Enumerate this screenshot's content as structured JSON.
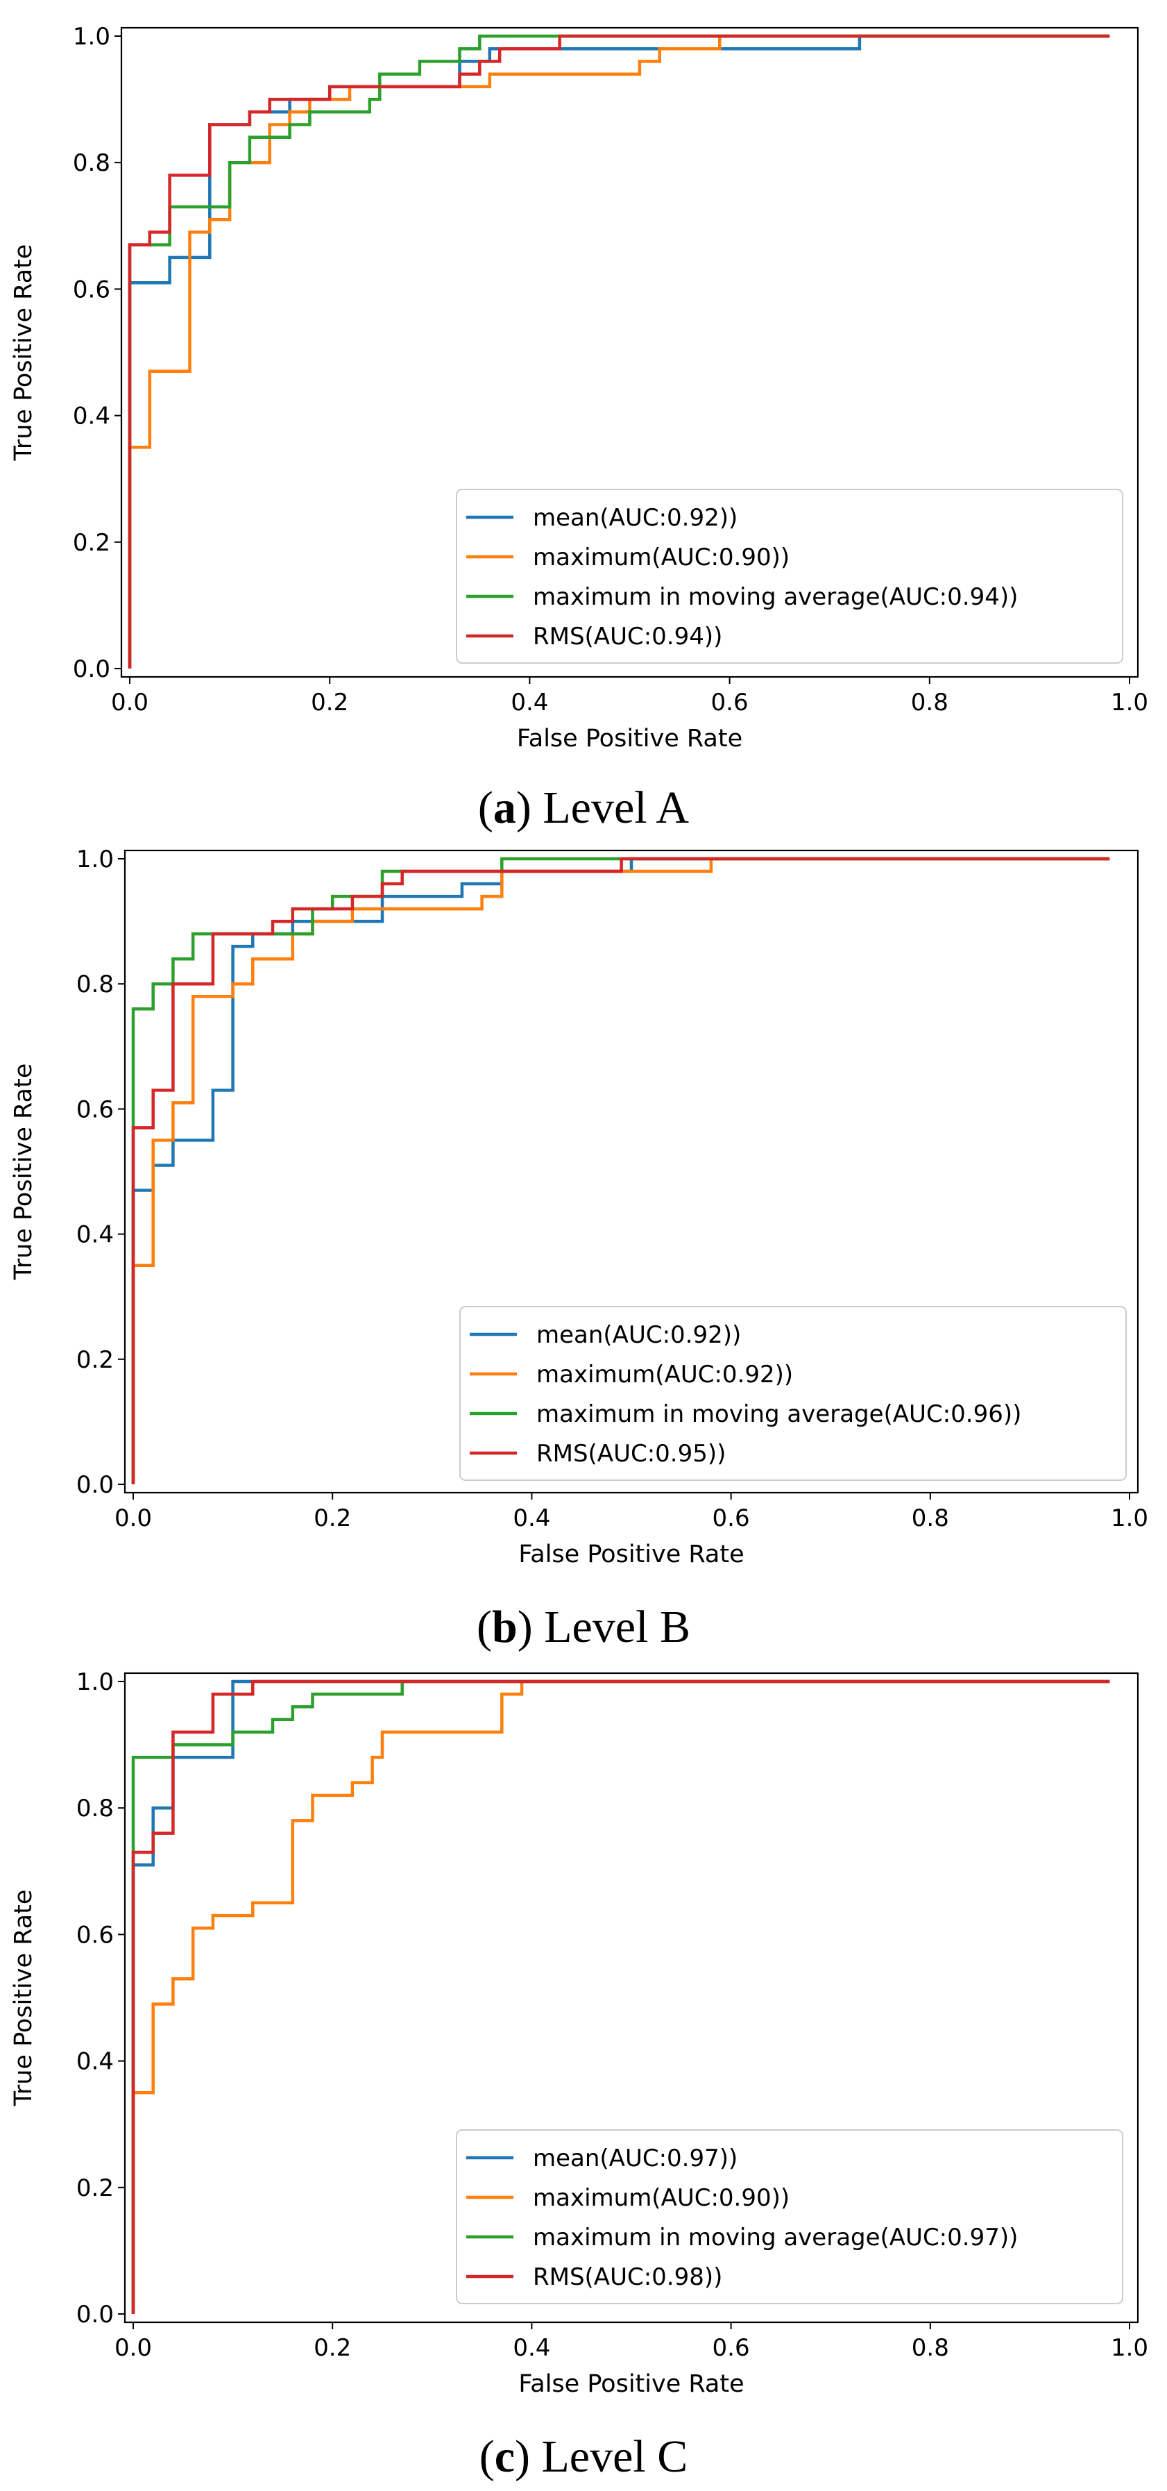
{
  "colors": {
    "mean": "#1f77b4",
    "maximum": "#ff7f0e",
    "moving_average": "#2ca02c",
    "rms": "#d62728"
  },
  "chart_data": [
    {
      "type": "line",
      "caption_letter": "a",
      "caption_text": "Level A",
      "xlabel": "False Positive Rate",
      "ylabel": "True Positive Rate",
      "xlim": [
        0,
        1
      ],
      "ylim": [
        0,
        1
      ],
      "x_ticks": [
        "0.0",
        "0.2",
        "0.4",
        "0.6",
        "0.8",
        "1.0"
      ],
      "y_ticks": [
        "0.0",
        "0.2",
        "0.4",
        "0.6",
        "0.8",
        "1.0"
      ],
      "grid": false,
      "legend_position": "lower-right",
      "series": [
        {
          "name": "mean(AUC:0.92))",
          "color": "#1f77b4",
          "points": [
            [
              0,
              0
            ],
            [
              0,
              0.61
            ],
            [
              0.04,
              0.61
            ],
            [
              0.04,
              0.65
            ],
            [
              0.08,
              0.65
            ],
            [
              0.08,
              0.86
            ],
            [
              0.12,
              0.86
            ],
            [
              0.12,
              0.88
            ],
            [
              0.16,
              0.88
            ],
            [
              0.16,
              0.9
            ],
            [
              0.2,
              0.9
            ],
            [
              0.2,
              0.92
            ],
            [
              0.33,
              0.92
            ],
            [
              0.33,
              0.96
            ],
            [
              0.36,
              0.96
            ],
            [
              0.36,
              0.98
            ],
            [
              0.73,
              0.98
            ],
            [
              0.73,
              1.0
            ],
            [
              0.98,
              1.0
            ]
          ]
        },
        {
          "name": "maximum(AUC:0.90))",
          "color": "#ff7f0e",
          "points": [
            [
              0,
              0
            ],
            [
              0,
              0.35
            ],
            [
              0.02,
              0.35
            ],
            [
              0.02,
              0.47
            ],
            [
              0.06,
              0.47
            ],
            [
              0.06,
              0.69
            ],
            [
              0.08,
              0.69
            ],
            [
              0.08,
              0.71
            ],
            [
              0.1,
              0.71
            ],
            [
              0.1,
              0.8
            ],
            [
              0.14,
              0.8
            ],
            [
              0.14,
              0.86
            ],
            [
              0.16,
              0.86
            ],
            [
              0.16,
              0.88
            ],
            [
              0.18,
              0.88
            ],
            [
              0.18,
              0.9
            ],
            [
              0.22,
              0.9
            ],
            [
              0.22,
              0.92
            ],
            [
              0.36,
              0.92
            ],
            [
              0.36,
              0.94
            ],
            [
              0.51,
              0.94
            ],
            [
              0.51,
              0.96
            ],
            [
              0.53,
              0.96
            ],
            [
              0.53,
              0.98
            ],
            [
              0.59,
              0.98
            ],
            [
              0.59,
              1.0
            ],
            [
              0.98,
              1.0
            ]
          ]
        },
        {
          "name": "maximum in moving average(AUC:0.94))",
          "color": "#2ca02c",
          "points": [
            [
              0,
              0
            ],
            [
              0,
              0.67
            ],
            [
              0.04,
              0.67
            ],
            [
              0.04,
              0.73
            ],
            [
              0.1,
              0.73
            ],
            [
              0.1,
              0.8
            ],
            [
              0.12,
              0.8
            ],
            [
              0.12,
              0.84
            ],
            [
              0.16,
              0.84
            ],
            [
              0.16,
              0.86
            ],
            [
              0.18,
              0.86
            ],
            [
              0.18,
              0.88
            ],
            [
              0.24,
              0.88
            ],
            [
              0.24,
              0.9
            ],
            [
              0.25,
              0.9
            ],
            [
              0.25,
              0.94
            ],
            [
              0.29,
              0.94
            ],
            [
              0.29,
              0.96
            ],
            [
              0.33,
              0.96
            ],
            [
              0.33,
              0.98
            ],
            [
              0.35,
              0.98
            ],
            [
              0.35,
              1.0
            ],
            [
              0.98,
              1.0
            ]
          ]
        },
        {
          "name": "RMS(AUC:0.94))",
          "color": "#d62728",
          "points": [
            [
              0,
              0
            ],
            [
              0,
              0.67
            ],
            [
              0.02,
              0.67
            ],
            [
              0.02,
              0.69
            ],
            [
              0.04,
              0.69
            ],
            [
              0.04,
              0.78
            ],
            [
              0.08,
              0.78
            ],
            [
              0.08,
              0.86
            ],
            [
              0.12,
              0.86
            ],
            [
              0.12,
              0.88
            ],
            [
              0.14,
              0.88
            ],
            [
              0.14,
              0.9
            ],
            [
              0.2,
              0.9
            ],
            [
              0.2,
              0.92
            ],
            [
              0.33,
              0.92
            ],
            [
              0.33,
              0.94
            ],
            [
              0.35,
              0.94
            ],
            [
              0.35,
              0.96
            ],
            [
              0.37,
              0.96
            ],
            [
              0.37,
              0.98
            ],
            [
              0.43,
              0.98
            ],
            [
              0.43,
              1.0
            ],
            [
              0.98,
              1.0
            ]
          ]
        }
      ]
    },
    {
      "type": "line",
      "caption_letter": "b",
      "caption_text": "Level B",
      "xlabel": "False Positive Rate",
      "ylabel": "True Positive Rate",
      "xlim": [
        0,
        1
      ],
      "ylim": [
        0,
        1
      ],
      "x_ticks": [
        "0.0",
        "0.2",
        "0.4",
        "0.6",
        "0.8",
        "1.0"
      ],
      "y_ticks": [
        "0.0",
        "0.2",
        "0.4",
        "0.6",
        "0.8",
        "1.0"
      ],
      "grid": false,
      "legend_position": "lower-right",
      "series": [
        {
          "name": "mean(AUC:0.92))",
          "color": "#1f77b4",
          "points": [
            [
              0,
              0
            ],
            [
              0,
              0.47
            ],
            [
              0.02,
              0.47
            ],
            [
              0.02,
              0.51
            ],
            [
              0.04,
              0.51
            ],
            [
              0.04,
              0.55
            ],
            [
              0.08,
              0.55
            ],
            [
              0.08,
              0.63
            ],
            [
              0.1,
              0.63
            ],
            [
              0.1,
              0.86
            ],
            [
              0.12,
              0.86
            ],
            [
              0.12,
              0.88
            ],
            [
              0.16,
              0.88
            ],
            [
              0.16,
              0.9
            ],
            [
              0.25,
              0.9
            ],
            [
              0.25,
              0.94
            ],
            [
              0.33,
              0.94
            ],
            [
              0.33,
              0.96
            ],
            [
              0.37,
              0.96
            ],
            [
              0.37,
              0.98
            ],
            [
              0.5,
              0.98
            ],
            [
              0.5,
              1.0
            ],
            [
              0.98,
              1.0
            ]
          ]
        },
        {
          "name": "maximum(AUC:0.92))",
          "color": "#ff7f0e",
          "points": [
            [
              0,
              0
            ],
            [
              0,
              0.35
            ],
            [
              0.02,
              0.35
            ],
            [
              0.02,
              0.55
            ],
            [
              0.04,
              0.55
            ],
            [
              0.04,
              0.61
            ],
            [
              0.06,
              0.61
            ],
            [
              0.06,
              0.78
            ],
            [
              0.1,
              0.78
            ],
            [
              0.1,
              0.8
            ],
            [
              0.12,
              0.8
            ],
            [
              0.12,
              0.84
            ],
            [
              0.16,
              0.84
            ],
            [
              0.16,
              0.88
            ],
            [
              0.18,
              0.88
            ],
            [
              0.18,
              0.9
            ],
            [
              0.22,
              0.9
            ],
            [
              0.22,
              0.92
            ],
            [
              0.35,
              0.92
            ],
            [
              0.35,
              0.94
            ],
            [
              0.37,
              0.94
            ],
            [
              0.37,
              0.98
            ],
            [
              0.58,
              0.98
            ],
            [
              0.58,
              1.0
            ],
            [
              0.98,
              1.0
            ]
          ]
        },
        {
          "name": "maximum in moving average(AUC:0.96))",
          "color": "#2ca02c",
          "points": [
            [
              0,
              0
            ],
            [
              0,
              0.76
            ],
            [
              0.02,
              0.76
            ],
            [
              0.02,
              0.8
            ],
            [
              0.04,
              0.8
            ],
            [
              0.04,
              0.84
            ],
            [
              0.06,
              0.84
            ],
            [
              0.06,
              0.88
            ],
            [
              0.18,
              0.88
            ],
            [
              0.18,
              0.92
            ],
            [
              0.2,
              0.92
            ],
            [
              0.2,
              0.94
            ],
            [
              0.25,
              0.94
            ],
            [
              0.25,
              0.98
            ],
            [
              0.37,
              0.98
            ],
            [
              0.37,
              1.0
            ],
            [
              0.98,
              1.0
            ]
          ]
        },
        {
          "name": "RMS(AUC:0.95))",
          "color": "#d62728",
          "points": [
            [
              0,
              0
            ],
            [
              0,
              0.57
            ],
            [
              0.02,
              0.57
            ],
            [
              0.02,
              0.63
            ],
            [
              0.04,
              0.63
            ],
            [
              0.04,
              0.8
            ],
            [
              0.08,
              0.8
            ],
            [
              0.08,
              0.88
            ],
            [
              0.14,
              0.88
            ],
            [
              0.14,
              0.9
            ],
            [
              0.16,
              0.9
            ],
            [
              0.16,
              0.92
            ],
            [
              0.22,
              0.92
            ],
            [
              0.22,
              0.94
            ],
            [
              0.25,
              0.94
            ],
            [
              0.25,
              0.96
            ],
            [
              0.27,
              0.96
            ],
            [
              0.27,
              0.98
            ],
            [
              0.49,
              0.98
            ],
            [
              0.49,
              1.0
            ],
            [
              0.98,
              1.0
            ]
          ]
        }
      ]
    },
    {
      "type": "line",
      "caption_letter": "c",
      "caption_text": "Level C",
      "xlabel": "False Positive Rate",
      "ylabel": "True Positive Rate",
      "xlim": [
        0,
        1
      ],
      "ylim": [
        0,
        1
      ],
      "x_ticks": [
        "0.0",
        "0.2",
        "0.4",
        "0.6",
        "0.8",
        "1.0"
      ],
      "y_ticks": [
        "0.0",
        "0.2",
        "0.4",
        "0.6",
        "0.8",
        "1.0"
      ],
      "grid": false,
      "legend_position": "lower-right",
      "series": [
        {
          "name": "mean(AUC:0.97))",
          "color": "#1f77b4",
          "points": [
            [
              0,
              0
            ],
            [
              0,
              0.71
            ],
            [
              0.02,
              0.71
            ],
            [
              0.02,
              0.8
            ],
            [
              0.04,
              0.8
            ],
            [
              0.04,
              0.88
            ],
            [
              0.1,
              0.88
            ],
            [
              0.1,
              1.0
            ],
            [
              0.98,
              1.0
            ]
          ]
        },
        {
          "name": "maximum(AUC:0.90))",
          "color": "#ff7f0e",
          "points": [
            [
              0,
              0
            ],
            [
              0,
              0.35
            ],
            [
              0.02,
              0.35
            ],
            [
              0.02,
              0.49
            ],
            [
              0.04,
              0.49
            ],
            [
              0.04,
              0.53
            ],
            [
              0.06,
              0.53
            ],
            [
              0.06,
              0.61
            ],
            [
              0.08,
              0.61
            ],
            [
              0.08,
              0.63
            ],
            [
              0.12,
              0.63
            ],
            [
              0.12,
              0.65
            ],
            [
              0.16,
              0.65
            ],
            [
              0.16,
              0.78
            ],
            [
              0.18,
              0.78
            ],
            [
              0.18,
              0.82
            ],
            [
              0.22,
              0.82
            ],
            [
              0.22,
              0.84
            ],
            [
              0.24,
              0.84
            ],
            [
              0.24,
              0.88
            ],
            [
              0.25,
              0.88
            ],
            [
              0.25,
              0.92
            ],
            [
              0.37,
              0.92
            ],
            [
              0.37,
              0.98
            ],
            [
              0.39,
              0.98
            ],
            [
              0.39,
              1.0
            ],
            [
              0.98,
              1.0
            ]
          ]
        },
        {
          "name": "maximum in moving average(AUC:0.97))",
          "color": "#2ca02c",
          "points": [
            [
              0,
              0
            ],
            [
              0,
              0.88
            ],
            [
              0.04,
              0.88
            ],
            [
              0.04,
              0.9
            ],
            [
              0.1,
              0.9
            ],
            [
              0.1,
              0.92
            ],
            [
              0.14,
              0.92
            ],
            [
              0.14,
              0.94
            ],
            [
              0.16,
              0.94
            ],
            [
              0.16,
              0.96
            ],
            [
              0.18,
              0.96
            ],
            [
              0.18,
              0.98
            ],
            [
              0.27,
              0.98
            ],
            [
              0.27,
              1.0
            ],
            [
              0.98,
              1.0
            ]
          ]
        },
        {
          "name": "RMS(AUC:0.98))",
          "color": "#d62728",
          "points": [
            [
              0,
              0
            ],
            [
              0,
              0.73
            ],
            [
              0.02,
              0.73
            ],
            [
              0.02,
              0.76
            ],
            [
              0.04,
              0.76
            ],
            [
              0.04,
              0.92
            ],
            [
              0.08,
              0.92
            ],
            [
              0.08,
              0.98
            ],
            [
              0.12,
              0.98
            ],
            [
              0.12,
              1.0
            ],
            [
              0.98,
              1.0
            ]
          ]
        }
      ]
    }
  ]
}
